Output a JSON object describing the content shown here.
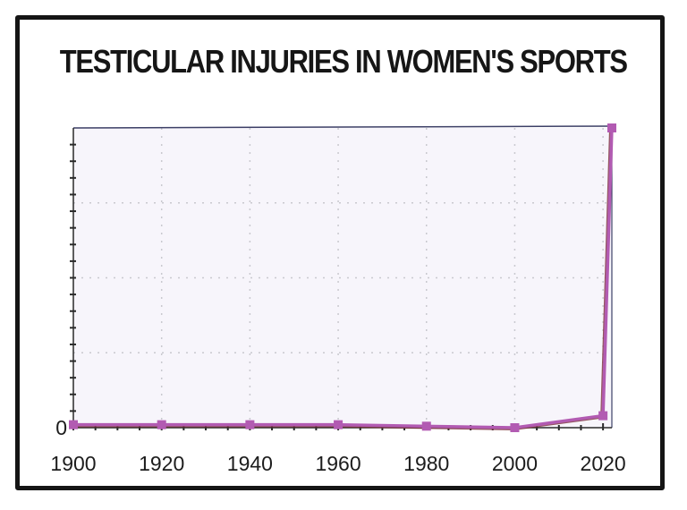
{
  "chart_data": {
    "type": "line",
    "title": "TESTICULAR INJURIES IN WOMEN'S SPORTS",
    "xlabel": "",
    "ylabel": "",
    "xlim": [
      1900,
      2022
    ],
    "ylim": [
      0,
      100
    ],
    "x_ticks": [
      1900,
      1920,
      1940,
      1960,
      1980,
      2000,
      2020
    ],
    "y_tick_labels": [
      {
        "value": 0,
        "label": "0"
      }
    ],
    "y_minor_tick_count": 17,
    "grid": true,
    "legend": "none",
    "series": [
      {
        "color": "#b25bb2",
        "points": [
          {
            "x": 1900,
            "y": 1
          },
          {
            "x": 1920,
            "y": 1
          },
          {
            "x": 1940,
            "y": 1
          },
          {
            "x": 1960,
            "y": 1
          },
          {
            "x": 1980,
            "y": 0.5
          },
          {
            "x": 2000,
            "y": 0
          },
          {
            "x": 2020,
            "y": 4
          },
          {
            "x": 2022,
            "y": 100
          }
        ]
      }
    ],
    "colors": {
      "line": "#b25bb2",
      "marker": "#b25bb2",
      "line_shadow": "#7a2e3a",
      "plot_bg": "#f7f5fb",
      "plot_border": "#3c3f66",
      "grid": "#c9c9cf",
      "axis": "#2a2a2a"
    }
  }
}
